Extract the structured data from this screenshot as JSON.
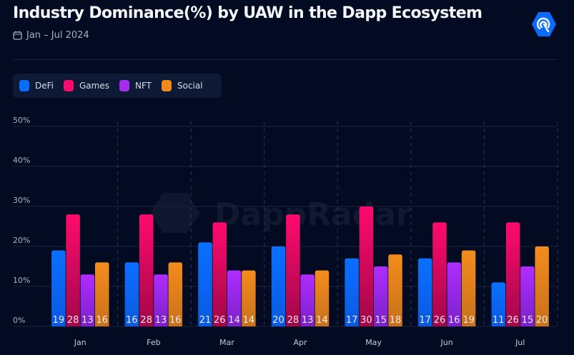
{
  "header": {
    "title": "Industry Dominance(%) by UAW in the Dapp Ecosystem",
    "date_range": "Jan – Jul 2024",
    "calendar_icon": "calendar-icon",
    "logo_icon": "dappradar-logo-icon"
  },
  "watermark": "DappRadar",
  "colors": {
    "DeFi": "#0a6cff",
    "Games": "#ff0a6c",
    "NFT": "#a62cf0",
    "Social": "#f08a1c",
    "background": "#020b22"
  },
  "chart_data": {
    "type": "bar",
    "title": "Industry Dominance(%) by UAW in the Dapp Ecosystem",
    "subtitle": "Jan – Jul 2024",
    "categories": [
      "Jan",
      "Feb",
      "Mar",
      "Apr",
      "May",
      "Jun",
      "Jul"
    ],
    "series": [
      {
        "name": "DeFi",
        "values": [
          19,
          16,
          21,
          20,
          17,
          17,
          11
        ]
      },
      {
        "name": "Games",
        "values": [
          28,
          28,
          26,
          28,
          30,
          26,
          26
        ]
      },
      {
        "name": "NFT",
        "values": [
          13,
          13,
          14,
          13,
          15,
          16,
          15
        ]
      },
      {
        "name": "Social",
        "values": [
          16,
          16,
          14,
          14,
          18,
          19,
          20
        ]
      }
    ],
    "yticks": [
      "0%",
      "10%",
      "20%",
      "30%",
      "40%",
      "50%"
    ],
    "ylim": [
      0,
      50
    ],
    "grid": true,
    "legend_position": "top-left"
  }
}
